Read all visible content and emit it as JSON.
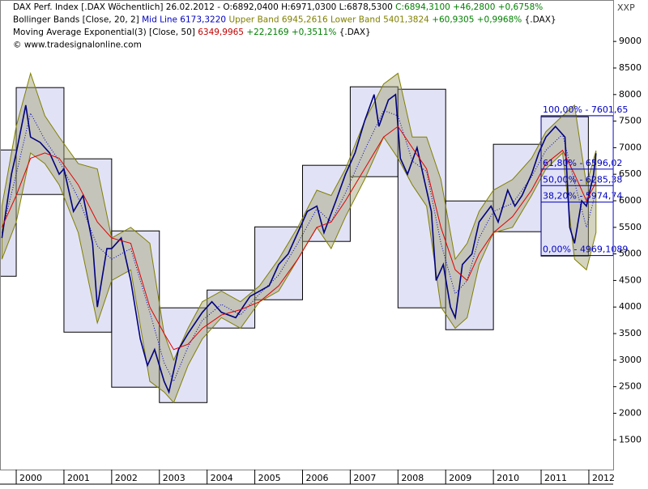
{
  "chart_data": {
    "type": "line",
    "header": [
      [
        {
          "text": "DAX Perf. Index [.DAX  Wöchentlich] 26.02.2012 - O:6892,0400 H:6971,0300 L:6878,5300 ",
          "color": "#000000"
        },
        {
          "text": "C:6894,3100 +46,2800 +0,6758%",
          "color": "#008000"
        }
      ],
      [
        {
          "text": "Bollinger Bands [Close, 20, 2] ",
          "color": "#000000"
        },
        {
          "text": "Mid Line 6173,3220 ",
          "color": "#0000c0"
        },
        {
          "text": "Upper Band 6945,2616 Lower Band 5401,3824 ",
          "color": "#808000"
        },
        {
          "text": "+60,9305 +0,9968% ",
          "color": "#008000"
        },
        {
          "text": "{.DAX}",
          "color": "#000000"
        }
      ],
      [
        {
          "text": "Moving Average Exponential(3) [Close, 50] ",
          "color": "#000000"
        },
        {
          "text": "6349,9965 ",
          "color": "#c00000"
        },
        {
          "text": "+22,2169 +0,3511% ",
          "color": "#008000"
        },
        {
          "text": "{.DAX}",
          "color": "#000000"
        }
      ],
      [
        {
          "text": "© www.tradesignalonline.com",
          "color": "#000000"
        }
      ]
    ],
    "axis_title": "XXP",
    "xlim": [
      1999.66,
      2012.51
    ],
    "ylim": [
      940,
      9780
    ],
    "xticks": [
      2000,
      2001,
      2002,
      2003,
      2004,
      2005,
      2006,
      2007,
      2008,
      2009,
      2010,
      2011,
      2012
    ],
    "yticks": [
      1500,
      2000,
      2500,
      3000,
      3500,
      4000,
      4500,
      5000,
      5500,
      6000,
      6500,
      7000,
      7500,
      8000,
      8500,
      9000
    ],
    "boxes": {
      "color": "#d8d8f4",
      "x0": [
        1999.66,
        2000,
        2001,
        2002,
        2003,
        2004,
        2005,
        2006,
        2007,
        2008,
        2009,
        2010,
        2011
      ],
      "x1": [
        2000,
        2001,
        2002,
        2003,
        2004,
        2005,
        2006,
        2007,
        2008,
        2009,
        2010,
        2011,
        2011.99
      ],
      "high": [
        6957,
        8131,
        6790,
        5433,
        3985,
        4320,
        5509,
        6668,
        8146,
        8100,
        5997,
        7064,
        7582
      ],
      "low": [
        4579,
        6119,
        3527,
        2491,
        2201,
        3604,
        4137,
        5235,
        6454,
        3985,
        3573,
        5418,
        4960
      ]
    },
    "bands": {
      "color": "#808000",
      "x": [
        1999.7,
        2000.0,
        2000.3,
        2000.6,
        2000.9,
        2001.3,
        2001.7,
        2002.0,
        2002.4,
        2002.8,
        2003.1,
        2003.3,
        2003.6,
        2003.9,
        2004.3,
        2004.7,
        2005.1,
        2005.5,
        2005.9,
        2006.3,
        2006.6,
        2006.9,
        2007.3,
        2007.7,
        2008.0,
        2008.3,
        2008.6,
        2008.9,
        2009.2,
        2009.45,
        2009.7,
        2010.0,
        2010.4,
        2010.8,
        2011.1,
        2011.45,
        2011.7,
        2011.95,
        2012.15
      ],
      "upper": [
        5900,
        7400,
        8400,
        7600,
        7200,
        6700,
        6600,
        5300,
        5500,
        5200,
        3500,
        3000,
        3600,
        4100,
        4300,
        4100,
        4400,
        4900,
        5500,
        6200,
        6100,
        6600,
        7500,
        8200,
        8400,
        7200,
        7200,
        6400,
        4900,
        5200,
        5800,
        6200,
        6400,
        6800,
        7300,
        7600,
        7800,
        6300,
        6945
      ],
      "lower": [
        4900,
        5600,
        6900,
        6700,
        6300,
        5400,
        3700,
        4500,
        4700,
        2600,
        2400,
        2200,
        2900,
        3400,
        3800,
        3600,
        4100,
        4300,
        4900,
        5500,
        5100,
        5700,
        6400,
        7200,
        6800,
        6300,
        5900,
        4000,
        3600,
        3800,
        4800,
        5400,
        5500,
        6100,
        6600,
        6900,
        4900,
        4700,
        5401
      ],
      "mid_color": "#0000c0",
      "mid": [
        5400,
        6500,
        7650,
        7150,
        6750,
        6050,
        5150,
        4900,
        5100,
        3900,
        2950,
        2600,
        3250,
        3750,
        4050,
        3850,
        4250,
        4600,
        5200,
        5850,
        5600,
        6150,
        6950,
        7700,
        7600,
        6750,
        6550,
        5200,
        4250,
        4500,
        5300,
        5800,
        5950,
        6450,
        6950,
        7250,
        6350,
        5500,
        6173
      ]
    },
    "ema": {
      "color": "#e00000",
      "x": [
        1999.7,
        2000.0,
        2000.3,
        2000.6,
        2000.9,
        2001.3,
        2001.7,
        2002.0,
        2002.4,
        2002.8,
        2003.1,
        2003.3,
        2003.6,
        2003.9,
        2004.3,
        2004.7,
        2005.1,
        2005.5,
        2005.9,
        2006.3,
        2006.6,
        2006.9,
        2007.3,
        2007.7,
        2008.0,
        2008.3,
        2008.6,
        2008.9,
        2009.2,
        2009.45,
        2009.7,
        2010.0,
        2010.4,
        2010.8,
        2011.1,
        2011.45,
        2011.7,
        2011.95,
        2012.15
      ],
      "values": [
        5500,
        6100,
        6800,
        6900,
        6800,
        6300,
        5600,
        5300,
        5200,
        4000,
        3500,
        3200,
        3300,
        3600,
        3850,
        3950,
        4100,
        4400,
        4900,
        5500,
        5600,
        6000,
        6600,
        7200,
        7400,
        7000,
        6600,
        5500,
        4700,
        4500,
        5000,
        5400,
        5700,
        6200,
        6700,
        6950,
        6500,
        6000,
        6350
      ]
    },
    "price": {
      "color": "#000080",
      "x": [
        1999.7,
        1999.9,
        2000.0,
        2000.2,
        2000.3,
        2000.5,
        2000.7,
        2000.9,
        2001.0,
        2001.2,
        2001.4,
        2001.6,
        2001.7,
        2001.9,
        2002.0,
        2002.2,
        2002.4,
        2002.6,
        2002.75,
        2002.9,
        2003.1,
        2003.2,
        2003.4,
        2003.6,
        2003.9,
        2004.1,
        2004.3,
        2004.6,
        2004.9,
        2005.1,
        2005.3,
        2005.5,
        2005.7,
        2005.9,
        2006.1,
        2006.3,
        2006.45,
        2006.7,
        2006.9,
        2007.1,
        2007.3,
        2007.5,
        2007.6,
        2007.8,
        2007.95,
        2008.05,
        2008.2,
        2008.4,
        2008.55,
        2008.7,
        2008.8,
        2008.95,
        2009.1,
        2009.2,
        2009.35,
        2009.55,
        2009.7,
        2009.95,
        2010.1,
        2010.3,
        2010.45,
        2010.6,
        2010.8,
        2010.95,
        2011.1,
        2011.3,
        2011.5,
        2011.6,
        2011.7,
        2011.85,
        2011.95,
        2012.1,
        2012.15
      ],
      "values": [
        5300,
        6500,
        6900,
        7800,
        7200,
        7100,
        6900,
        6500,
        6600,
        5800,
        6100,
        5200,
        4000,
        5100,
        5100,
        5300,
        4500,
        3400,
        2900,
        3200,
        2600,
        2400,
        3200,
        3500,
        3900,
        4100,
        3900,
        3800,
        4200,
        4300,
        4400,
        4800,
        5000,
        5400,
        5800,
        5900,
        5400,
        6000,
        6500,
        6900,
        7500,
        8000,
        7400,
        7900,
        8000,
        6800,
        6500,
        7000,
        6400,
        5800,
        4500,
        4800,
        4000,
        3800,
        4800,
        5000,
        5600,
        5900,
        5600,
        6200,
        5900,
        6100,
        6500,
        6900,
        7200,
        7400,
        7200,
        5500,
        5200,
        6000,
        5900,
        6500,
        6894
      ]
    },
    "fibonacci": {
      "color": "#0000c0",
      "x0": 2011,
      "x1": 2012.51,
      "levels": [
        {
          "value": 7601.65,
          "label": "100,00% - 7601,65"
        },
        {
          "value": 6596.02,
          "label": "61,80% - 6596,02"
        },
        {
          "value": 6285.38,
          "label": "50,00% - 6285,38"
        },
        {
          "value": 5974.74,
          "label": "38,20% - 5974,74"
        },
        {
          "value": 4969.1089,
          "label": "0,00% - 4969,1089"
        }
      ]
    }
  }
}
